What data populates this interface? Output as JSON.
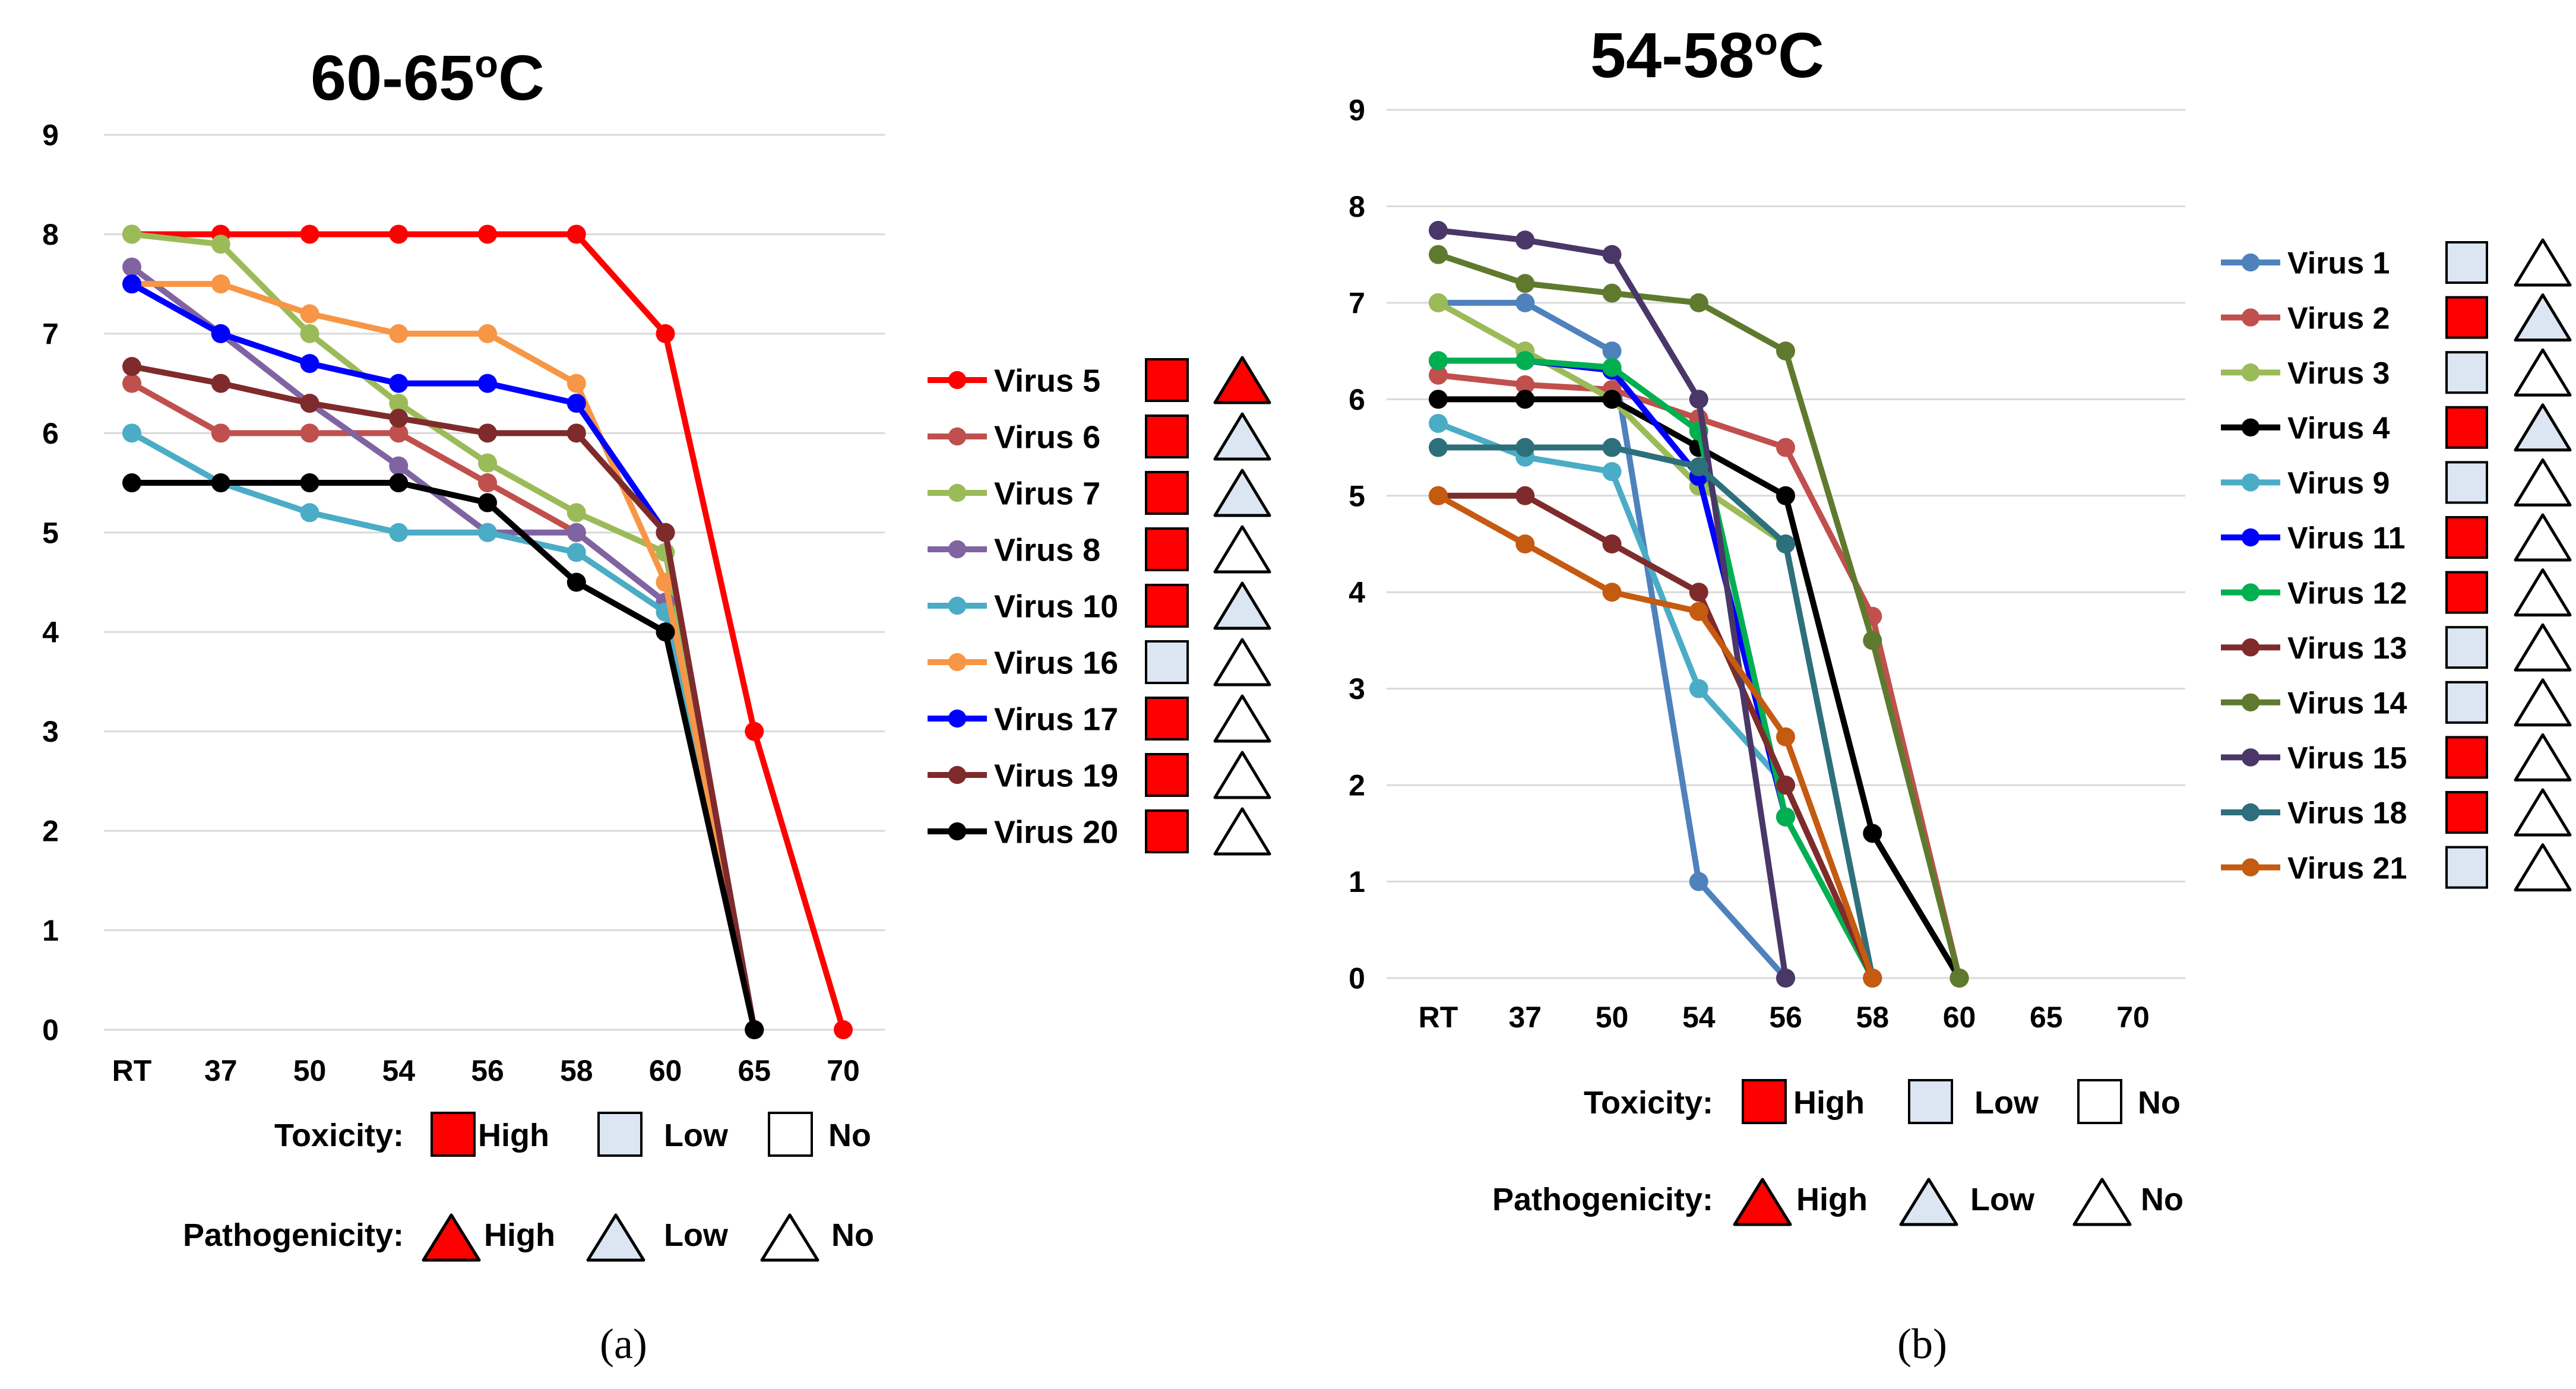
{
  "chart_data": [
    {
      "type": "line",
      "title_main": "60-65",
      "title_sup": "o",
      "title_end": "C",
      "panel_label": "(a)",
      "categories": [
        "RT",
        "37",
        "50",
        "54",
        "56",
        "58",
        "60",
        "65",
        "70"
      ],
      "yticks": [
        "0",
        "1",
        "2",
        "3",
        "4",
        "5",
        "6",
        "7",
        "8",
        "9"
      ],
      "ylim": [
        0,
        9
      ],
      "series": [
        {
          "name": "Virus 5",
          "color": "#ff0000",
          "values": [
            8,
            8,
            8,
            8,
            8,
            8,
            7,
            3,
            0
          ],
          "toxicity": "High",
          "pathogenicity": "High"
        },
        {
          "name": "Virus 6",
          "color": "#c0504d",
          "values": [
            6.5,
            6,
            6,
            6,
            5.5,
            5,
            4.3,
            0,
            null
          ],
          "toxicity": "High",
          "pathogenicity": "Low"
        },
        {
          "name": "Virus 7",
          "color": "#9bbb59",
          "values": [
            8,
            7.9,
            7,
            6.3,
            5.7,
            5.2,
            4.8,
            0,
            null
          ],
          "toxicity": "High",
          "pathogenicity": "Low"
        },
        {
          "name": "Virus 8",
          "color": "#8064a2",
          "values": [
            7.67,
            7,
            6.3,
            5.67,
            5,
            5,
            4.3,
            0,
            null
          ],
          "toxicity": "High",
          "pathogenicity": "No"
        },
        {
          "name": "Virus 10",
          "color": "#4bacc6",
          "values": [
            6,
            5.5,
            5.2,
            5,
            5,
            4.8,
            4.2,
            0,
            null
          ],
          "toxicity": "High",
          "pathogenicity": "Low"
        },
        {
          "name": "Virus 16",
          "color": "#f79646",
          "values": [
            7.5,
            7.5,
            7.2,
            7,
            7,
            6.5,
            4.5,
            0,
            null
          ],
          "toxicity": "Low",
          "pathogenicity": "No"
        },
        {
          "name": "Virus 17",
          "color": "#0000ff",
          "values": [
            7.5,
            7,
            6.7,
            6.5,
            6.5,
            6.3,
            5,
            0,
            null
          ],
          "toxicity": "High",
          "pathogenicity": "No"
        },
        {
          "name": "Virus 19",
          "color": "#7f2b2b",
          "values": [
            6.67,
            6.5,
            6.3,
            6.15,
            6,
            6,
            5,
            0,
            null
          ],
          "toxicity": "High",
          "pathogenicity": "No"
        },
        {
          "name": "Virus 20",
          "color": "#000000",
          "values": [
            5.5,
            5.5,
            5.5,
            5.5,
            5.3,
            4.5,
            4,
            0,
            null
          ],
          "toxicity": "High",
          "pathogenicity": "No"
        }
      ],
      "key": {
        "toxicity_label": "Toxicity:",
        "pathogenicity_label": "Pathogenicity:",
        "high": "High",
        "low": "Low",
        "no": "No"
      }
    },
    {
      "type": "line",
      "title_main": "54-58",
      "title_sup": "o",
      "title_end": "C",
      "panel_label": "(b)",
      "categories": [
        "RT",
        "37",
        "50",
        "54",
        "56",
        "58",
        "60",
        "65",
        "70"
      ],
      "yticks": [
        "0",
        "1",
        "2",
        "3",
        "4",
        "5",
        "6",
        "7",
        "8",
        "9"
      ],
      "ylim": [
        0,
        9
      ],
      "series": [
        {
          "name": "Virus 1",
          "color": "#4f81bd",
          "values": [
            7,
            7,
            6.5,
            1,
            0,
            null,
            null,
            null,
            null
          ],
          "toxicity": "Low",
          "pathogenicity": "No"
        },
        {
          "name": "Virus 2",
          "color": "#c0504d",
          "values": [
            6.25,
            6.15,
            6.1,
            5.8,
            5.5,
            3.75,
            0,
            null,
            null
          ],
          "toxicity": "High",
          "pathogenicity": "Low"
        },
        {
          "name": "Virus 3",
          "color": "#9bbb59",
          "values": [
            7,
            6.5,
            6,
            5.1,
            4.5,
            0,
            null,
            null,
            null
          ],
          "toxicity": "Low",
          "pathogenicity": "No"
        },
        {
          "name": "Virus 4",
          "color": "#000000",
          "values": [
            6,
            6,
            6,
            5.5,
            5,
            1.5,
            0,
            null,
            null
          ],
          "toxicity": "High",
          "pathogenicity": "Low"
        },
        {
          "name": "Virus 9",
          "color": "#4bacc6",
          "values": [
            5.75,
            5.4,
            5.25,
            3,
            2,
            0,
            null,
            null,
            null
          ],
          "toxicity": "Low",
          "pathogenicity": "No"
        },
        {
          "name": "Virus 11",
          "color": "#0000ff",
          "values": [
            6.4,
            6.4,
            6.3,
            5.2,
            1.67,
            null,
            null,
            null,
            null
          ],
          "toxicity": "High",
          "pathogenicity": "No"
        },
        {
          "name": "Virus 12",
          "color": "#00b050",
          "values": [
            6.4,
            6.4,
            6.33,
            5.67,
            1.67,
            0,
            null,
            null,
            null
          ],
          "toxicity": "High",
          "pathogenicity": "No"
        },
        {
          "name": "Virus 13",
          "color": "#7f2b2b",
          "values": [
            5,
            5,
            4.5,
            4,
            2,
            0,
            null,
            null,
            null
          ],
          "toxicity": "Low",
          "pathogenicity": "No"
        },
        {
          "name": "Virus 14",
          "color": "#5f7a2e",
          "values": [
            7.5,
            7.2,
            7.1,
            7,
            6.5,
            3.5,
            0,
            null,
            null
          ],
          "toxicity": "Low",
          "pathogenicity": "No"
        },
        {
          "name": "Virus 15",
          "color": "#4a3768",
          "values": [
            7.75,
            7.65,
            7.5,
            6,
            0,
            null,
            null,
            null,
            null
          ],
          "toxicity": "High",
          "pathogenicity": "No"
        },
        {
          "name": "Virus 18",
          "color": "#2e6f7c",
          "values": [
            5.5,
            5.5,
            5.5,
            5.3,
            4.5,
            0,
            null,
            null,
            null
          ],
          "toxicity": "High",
          "pathogenicity": "No"
        },
        {
          "name": "Virus 21",
          "color": "#c55a11",
          "values": [
            5,
            4.5,
            4,
            3.8,
            2.5,
            0,
            null,
            null,
            null
          ],
          "toxicity": "Low",
          "pathogenicity": "No"
        }
      ],
      "key": {
        "toxicity_label": "Toxicity:",
        "pathogenicity_label": "Pathogenicity:",
        "high": "High",
        "low": "Low",
        "no": "No"
      }
    }
  ],
  "colors": {
    "toxicity_high": "#ff0000",
    "toxicity_low": "#dce6f2",
    "toxicity_no": "#ffffff",
    "pathogenicity_high": "#ff0000",
    "pathogenicity_low": "#dce6f2",
    "pathogenicity_no": "#ffffff",
    "grid": "#d9d9d9"
  }
}
